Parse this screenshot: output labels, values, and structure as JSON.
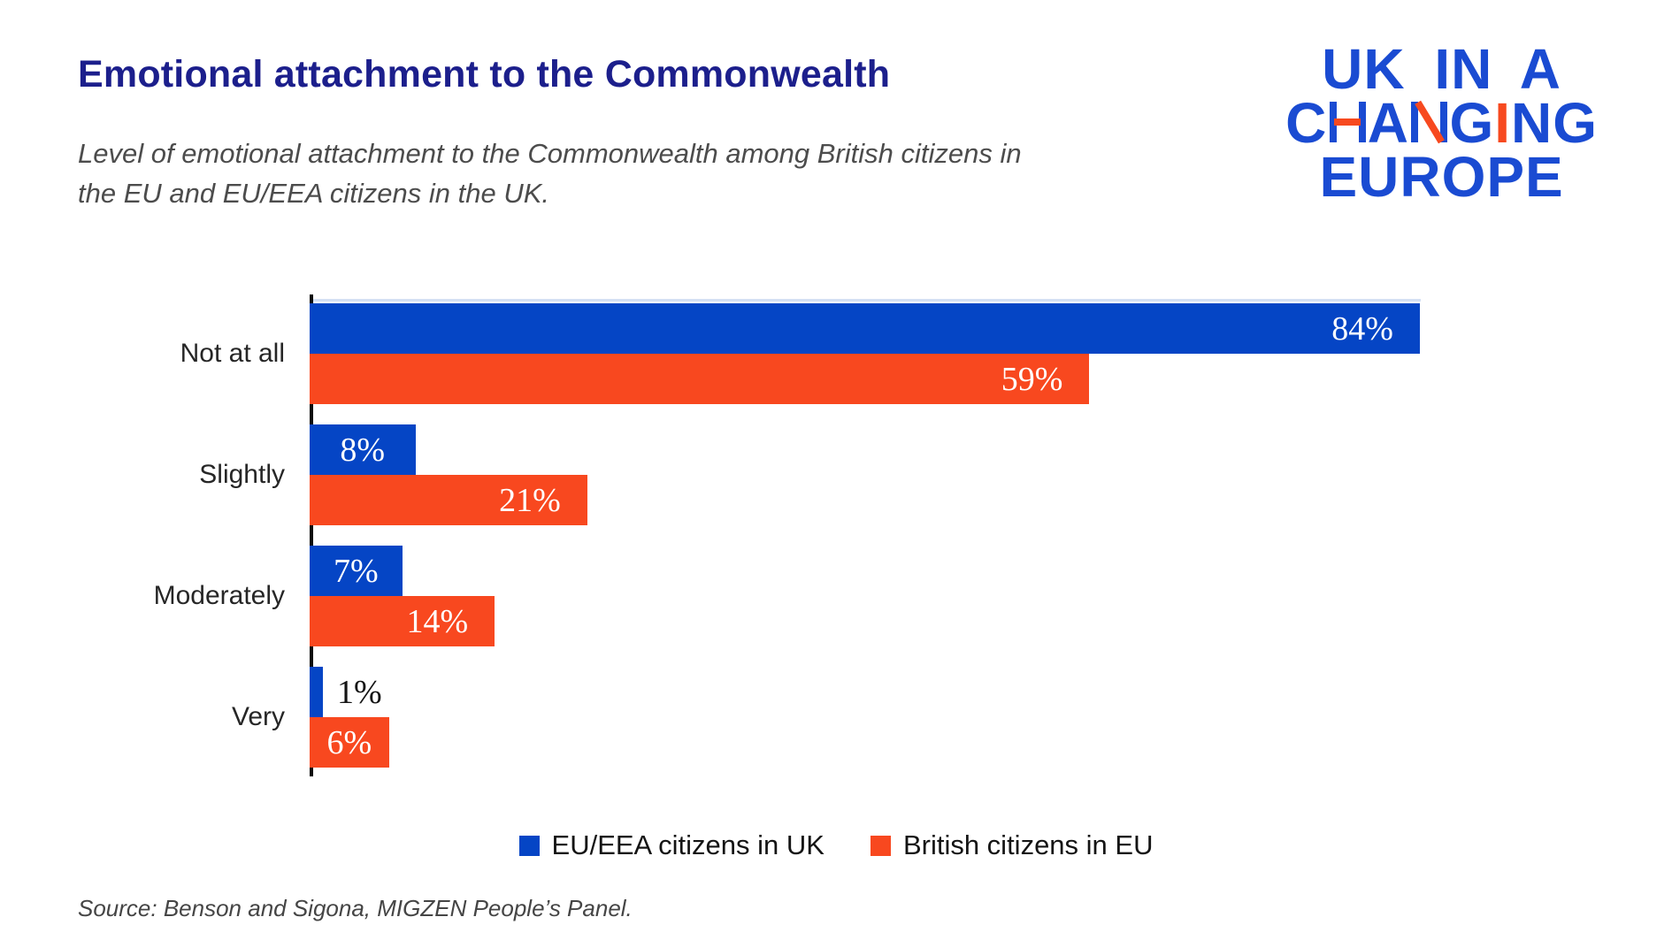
{
  "header": {
    "title": "Emotional attachment to the Commonwealth",
    "subtitle_lines": [
      "Level of emotional attachment to the Commonwealth among British citizens in",
      "the EU and EU/EEA citizens in the UK."
    ]
  },
  "logo": {
    "line1": "UK IN A",
    "line2_letters": [
      "C",
      "H",
      "A",
      "N",
      "G",
      "I",
      "N",
      "G"
    ],
    "line2_accents": [
      false,
      "crossbar",
      false,
      "diagonal",
      false,
      "full",
      false,
      false
    ],
    "line3": "EUROPE",
    "blue": "#1a4bd2",
    "accent_color": "#f7491f"
  },
  "chart_data": {
    "type": "bar",
    "orientation": "horizontal",
    "title": "Emotional attachment to the Commonwealth",
    "categories": [
      "Not at all",
      "Slightly",
      "Moderately",
      "Very"
    ],
    "series": [
      {
        "name": "EU/EEA citizens in UK",
        "color": "#0545c5",
        "values": [
          84,
          8,
          7,
          1
        ]
      },
      {
        "name": "British citizens in EU",
        "color": "#f8481f",
        "values": [
          59,
          21,
          14,
          6
        ]
      }
    ],
    "value_suffix": "%",
    "xlabel": "",
    "ylabel": "",
    "xlim": [
      0,
      100
    ],
    "grid": false,
    "legend_position": "bottom"
  },
  "source": "Source: Benson and Sigona, MIGZEN People’s Panel."
}
